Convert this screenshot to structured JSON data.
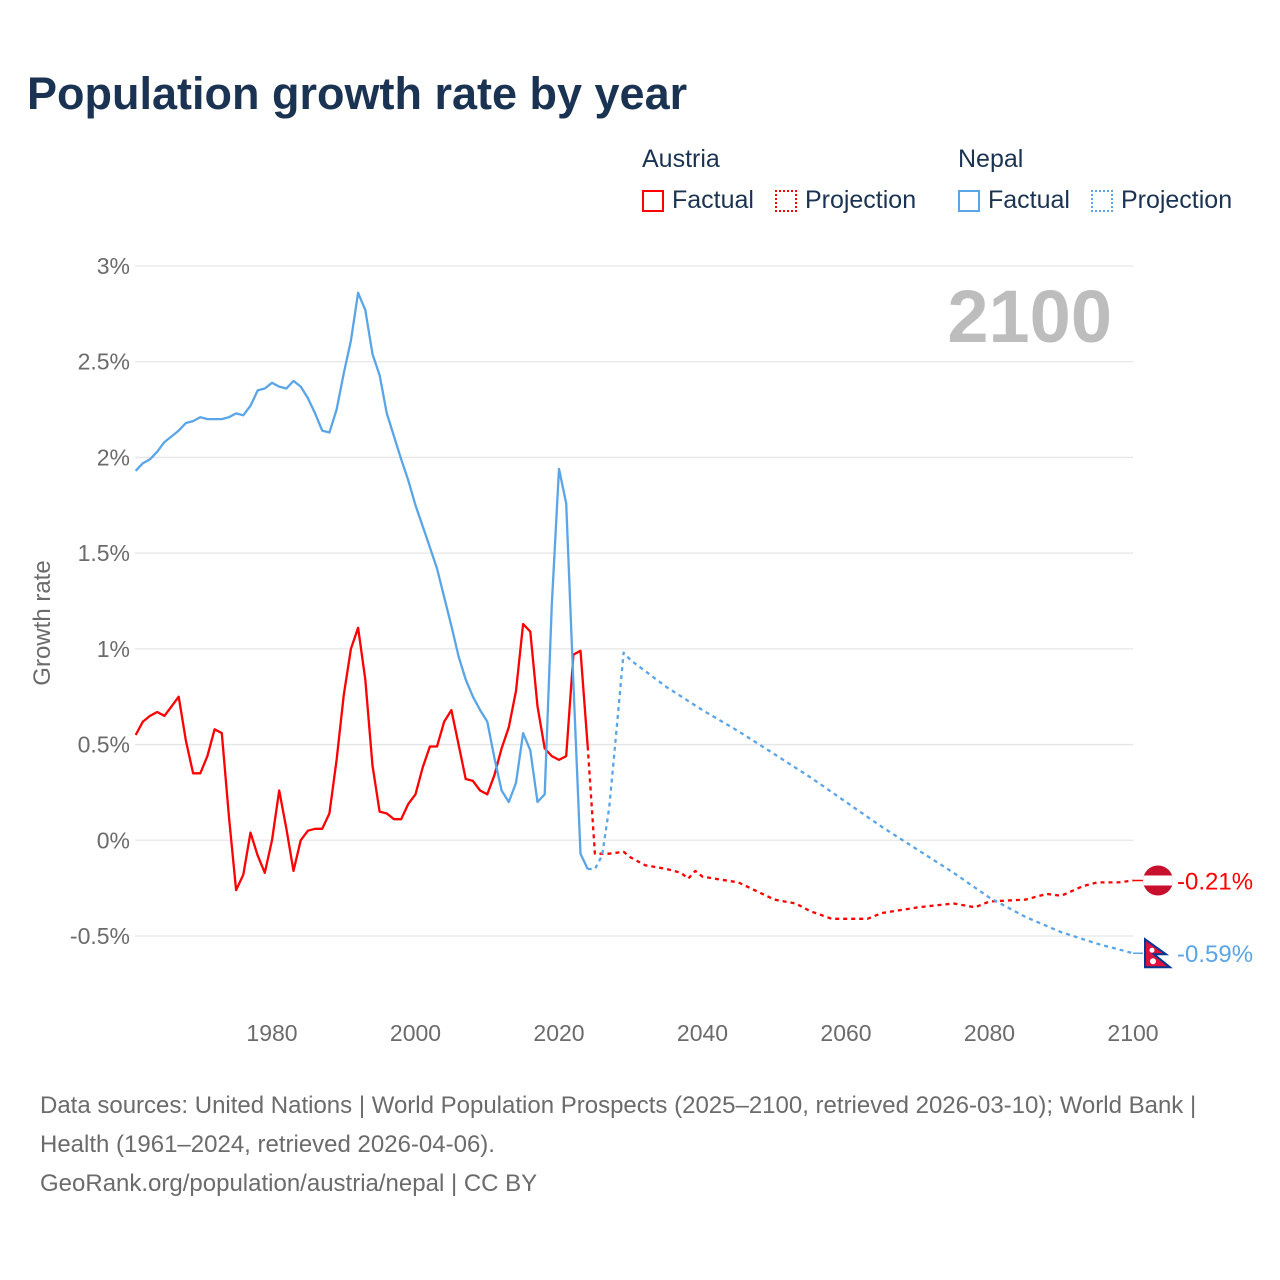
{
  "title": "Population growth rate by year",
  "legend": {
    "groups": [
      {
        "name": "Austria",
        "factual": "Factual",
        "projection": "Projection",
        "color": "#ff0000"
      },
      {
        "name": "Nepal",
        "factual": "Factual",
        "projection": "Projection",
        "color": "#5aa5e8"
      }
    ]
  },
  "year_display": "2100",
  "footer": {
    "sources": "Data sources: United Nations | World Population Prospects (2025–2100, retrieved 2026-03-10); World Bank | Health (1961–2024, retrieved 2026-04-06).",
    "credit": "GeoRank.org/population/austria/nepal | CC BY"
  },
  "chart_data": {
    "type": "line",
    "title": "Population growth rate by year",
    "xlabel": "",
    "ylabel": "Growth rate",
    "xlim": [
      1961,
      2100
    ],
    "ylim": [
      -0.5,
      3
    ],
    "x_ticks": [
      1980,
      2000,
      2020,
      2040,
      2060,
      2080,
      2100
    ],
    "y_ticks": [
      {
        "value": 3,
        "label": "3%"
      },
      {
        "value": 2.5,
        "label": "2.5%"
      },
      {
        "value": 2,
        "label": "2%"
      },
      {
        "value": 1.5,
        "label": "1.5%"
      },
      {
        "value": 1,
        "label": "1%"
      },
      {
        "value": 0.5,
        "label": "0.5%"
      },
      {
        "value": 0,
        "label": "0%"
      },
      {
        "value": -0.5,
        "label": "-0.5%"
      }
    ],
    "grid": true,
    "legend_position": "top-right",
    "series": [
      {
        "name": "Austria Factual",
        "country": "Austria",
        "style": "solid",
        "color": "#ff0000",
        "x_start": 1961,
        "values": [
          0.55,
          0.62,
          0.65,
          0.67,
          0.65,
          0.7,
          0.75,
          0.52,
          0.35,
          0.35,
          0.44,
          0.58,
          0.56,
          0.12,
          -0.26,
          -0.18,
          0.04,
          -0.08,
          -0.17,
          0.0,
          0.26,
          0.06,
          -0.16,
          0.0,
          0.05,
          0.06,
          0.06,
          0.14,
          0.42,
          0.76,
          1.0,
          1.11,
          0.84,
          0.39,
          0.15,
          0.14,
          0.11,
          0.11,
          0.19,
          0.24,
          0.38,
          0.49,
          0.49,
          0.62,
          0.68,
          0.5,
          0.32,
          0.31,
          0.26,
          0.24,
          0.34,
          0.48,
          0.59,
          0.78,
          1.13,
          1.09,
          0.7,
          0.48,
          0.44,
          0.42,
          0.44,
          0.97,
          0.99,
          0.49
        ]
      },
      {
        "name": "Austria Projection",
        "country": "Austria",
        "style": "dotted",
        "color": "#ff0000",
        "x": [
          2024,
          2025,
          2027,
          2029,
          2030,
          2032,
          2035,
          2037,
          2038,
          2039,
          2040,
          2045,
          2050,
          2053,
          2055,
          2058,
          2060,
          2063,
          2065,
          2070,
          2075,
          2078,
          2080,
          2085,
          2088,
          2090,
          2093,
          2095,
          2098,
          2100
        ],
        "values": [
          0.49,
          -0.07,
          -0.07,
          -0.06,
          -0.09,
          -0.13,
          -0.15,
          -0.17,
          -0.2,
          -0.16,
          -0.19,
          -0.22,
          -0.31,
          -0.33,
          -0.37,
          -0.41,
          -0.41,
          -0.41,
          -0.38,
          -0.35,
          -0.33,
          -0.35,
          -0.32,
          -0.31,
          -0.28,
          -0.29,
          -0.24,
          -0.22,
          -0.22,
          -0.21
        ]
      },
      {
        "name": "Nepal Factual",
        "country": "Nepal",
        "style": "solid",
        "color": "#5aa5e8",
        "x_start": 1961,
        "values": [
          1.93,
          1.97,
          1.99,
          2.03,
          2.08,
          2.11,
          2.14,
          2.18,
          2.19,
          2.21,
          2.2,
          2.2,
          2.2,
          2.21,
          2.23,
          2.22,
          2.27,
          2.35,
          2.36,
          2.39,
          2.37,
          2.36,
          2.4,
          2.37,
          2.31,
          2.23,
          2.14,
          2.13,
          2.25,
          2.44,
          2.61,
          2.86,
          2.77,
          2.54,
          2.43,
          2.23,
          2.11,
          1.99,
          1.88,
          1.75,
          1.64,
          1.53,
          1.42,
          1.27,
          1.12,
          0.96,
          0.84,
          0.75,
          0.68,
          0.62,
          0.43,
          0.26,
          0.2,
          0.3,
          0.56,
          0.47,
          0.2,
          0.24,
          1.23,
          1.94,
          1.76,
          0.82,
          -0.07,
          -0.15
        ]
      },
      {
        "name": "Nepal Projection",
        "country": "Nepal",
        "style": "dotted",
        "color": "#5aa5e8",
        "x": [
          2024,
          2025,
          2026,
          2027,
          2028,
          2029,
          2030,
          2035,
          2040,
          2045,
          2050,
          2055,
          2060,
          2065,
          2070,
          2075,
          2080,
          2085,
          2090,
          2095,
          2100
        ],
        "values": [
          -0.15,
          -0.15,
          -0.08,
          0.17,
          0.57,
          0.98,
          0.94,
          0.8,
          0.68,
          0.57,
          0.45,
          0.33,
          0.2,
          0.07,
          -0.05,
          -0.17,
          -0.3,
          -0.4,
          -0.48,
          -0.54,
          -0.59
        ]
      }
    ],
    "end_labels": [
      {
        "country": "Austria",
        "label": "-0.21%",
        "value": -0.21,
        "color": "#ff0000"
      },
      {
        "country": "Nepal",
        "label": "-0.59%",
        "value": -0.59,
        "color": "#5aa5e8"
      }
    ]
  }
}
